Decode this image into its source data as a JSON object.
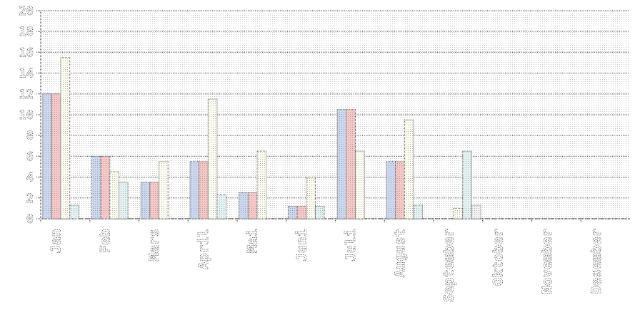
{
  "chart_data": {
    "type": "bar",
    "categories": [
      "Jan",
      "Feb",
      "Mars",
      "April",
      "Mai",
      "Juni",
      "Juli",
      "August",
      "September",
      "Oktober",
      "November",
      "Desember"
    ],
    "series": [
      {
        "values": [
          12,
          6,
          3.5,
          5.5,
          2.5,
          1.2,
          10.5,
          5.5,
          0,
          0,
          0,
          0
        ]
      },
      {
        "values": [
          12,
          6,
          3.5,
          5.5,
          2.5,
          1.2,
          10.5,
          5.5,
          0,
          0,
          0,
          0
        ]
      },
      {
        "values": [
          15.5,
          4.5,
          5.5,
          11.5,
          6.5,
          4,
          6.5,
          9.5,
          1,
          0,
          0,
          0
        ]
      },
      {
        "values": [
          1.3,
          3.5,
          0,
          2.3,
          0,
          1.2,
          0,
          1.3,
          6.5,
          0,
          0,
          0
        ]
      },
      {
        "values": [
          0,
          0,
          0,
          0,
          0,
          0,
          0,
          0,
          1.3,
          0,
          0,
          0
        ]
      }
    ],
    "series_colors": [
      "#cdd7ee",
      "#f6c9c9",
      "#fdfdf2",
      "#e4f2f2",
      "#f2f2f2"
    ],
    "ylim": [
      0,
      20
    ],
    "yticks": [
      0,
      2,
      4,
      6,
      8,
      10,
      12,
      14,
      16,
      18,
      20
    ],
    "ytick_labels": [
      "0",
      "2",
      "4",
      "6",
      "8",
      "10",
      "12",
      "14",
      "16",
      "18",
      "20"
    ],
    "grid": true,
    "title": "",
    "xlabel": "",
    "ylabel": ""
  }
}
